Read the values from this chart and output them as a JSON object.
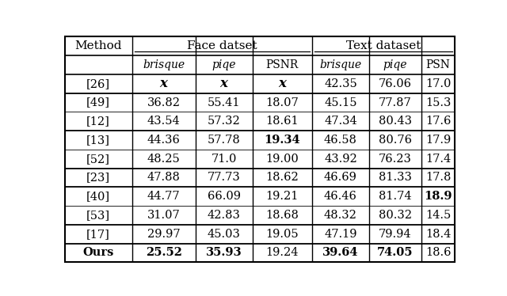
{
  "col_header_labels": [
    "brisque",
    "piqe",
    "PSNR",
    "brisque",
    "piqe",
    "PSN"
  ],
  "col_header_italic": [
    true,
    true,
    false,
    true,
    true,
    false
  ],
  "rows": [
    {
      "method": "[26]",
      "vals": [
        "x",
        "x",
        "x",
        "42.35",
        "76.06",
        "17.0"
      ],
      "bold": [
        false,
        false,
        false,
        false,
        false,
        false
      ],
      "cross": [
        true,
        true,
        true,
        false,
        false,
        false
      ]
    },
    {
      "method": "[49]",
      "vals": [
        "36.82",
        "55.41",
        "18.07",
        "45.15",
        "77.87",
        "15.3"
      ],
      "bold": [
        false,
        false,
        false,
        false,
        false,
        false
      ],
      "cross": [
        false,
        false,
        false,
        false,
        false,
        false
      ]
    },
    {
      "method": "[12]",
      "vals": [
        "43.54",
        "57.32",
        "18.61",
        "47.34",
        "80.43",
        "17.6"
      ],
      "bold": [
        false,
        false,
        false,
        false,
        false,
        false
      ],
      "cross": [
        false,
        false,
        false,
        false,
        false,
        false
      ]
    },
    {
      "method": "[13]",
      "vals": [
        "44.36",
        "57.78",
        "19.34",
        "46.58",
        "80.76",
        "17.9"
      ],
      "bold": [
        false,
        false,
        true,
        false,
        false,
        false
      ],
      "cross": [
        false,
        false,
        false,
        false,
        false,
        false
      ]
    },
    {
      "method": "[52]",
      "vals": [
        "48.25",
        "71.0",
        "19.00",
        "43.92",
        "76.23",
        "17.4"
      ],
      "bold": [
        false,
        false,
        false,
        false,
        false,
        false
      ],
      "cross": [
        false,
        false,
        false,
        false,
        false,
        false
      ]
    },
    {
      "method": "[23]",
      "vals": [
        "47.88",
        "77.73",
        "18.62",
        "46.69",
        "81.33",
        "17.8"
      ],
      "bold": [
        false,
        false,
        false,
        false,
        false,
        false
      ],
      "cross": [
        false,
        false,
        false,
        false,
        false,
        false
      ]
    },
    {
      "method": "[40]",
      "vals": [
        "44.77",
        "66.09",
        "19.21",
        "46.46",
        "81.74",
        "18.9"
      ],
      "bold": [
        false,
        false,
        false,
        false,
        false,
        true
      ],
      "cross": [
        false,
        false,
        false,
        false,
        false,
        false
      ]
    },
    {
      "method": "[53]",
      "vals": [
        "31.07",
        "42.83",
        "18.68",
        "48.32",
        "80.32",
        "14.5"
      ],
      "bold": [
        false,
        false,
        false,
        false,
        false,
        false
      ],
      "cross": [
        false,
        false,
        false,
        false,
        false,
        false
      ]
    },
    {
      "method": "[17]",
      "vals": [
        "29.97",
        "45.03",
        "19.05",
        "47.19",
        "79.94",
        "18.4"
      ],
      "bold": [
        false,
        false,
        false,
        false,
        false,
        false
      ],
      "cross": [
        false,
        false,
        false,
        false,
        false,
        false
      ]
    },
    {
      "method": "Ours",
      "vals": [
        "25.52",
        "35.93",
        "19.24",
        "39.64",
        "74.05",
        "18.6"
      ],
      "bold": [
        true,
        true,
        false,
        true,
        true,
        false
      ],
      "cross": [
        false,
        false,
        false,
        false,
        false,
        false
      ]
    }
  ],
  "thick_border_after_data_rows": [
    0,
    2,
    4,
    5,
    7,
    8,
    9
  ],
  "text_color": "#000000"
}
